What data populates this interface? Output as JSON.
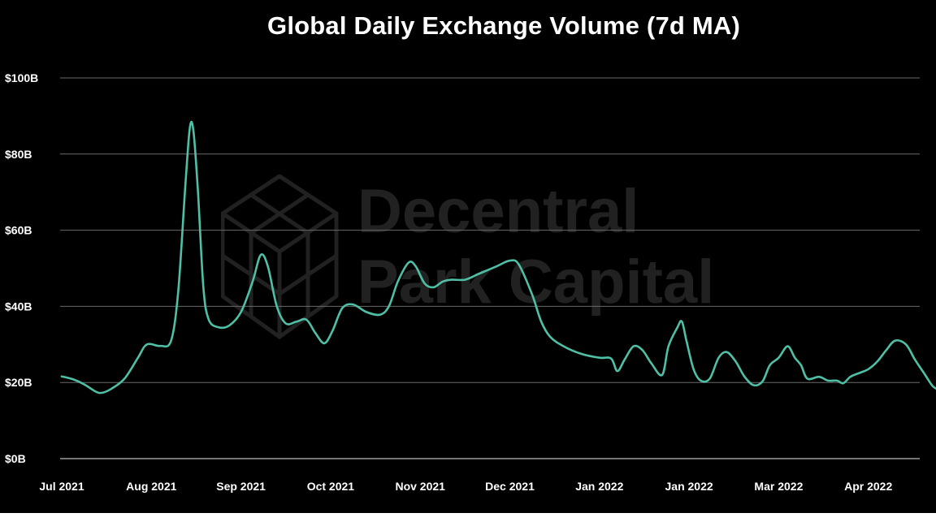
{
  "chart_data": {
    "type": "line",
    "title": "Global Daily Exchange Volume (7d MA)",
    "xlabel": "",
    "ylabel": "",
    "ylim": [
      0,
      100
    ],
    "y_ticks": [
      "$0B",
      "$20B",
      "$40B",
      "$60B",
      "$80B",
      "$100B"
    ],
    "x_ticks": [
      "Jul 2021",
      "Aug 2021",
      "Sep 2021",
      "Oct 2021",
      "Nov 2021",
      "Dec 2021",
      "Jan 2022",
      "Jan 2022",
      "Mar 2022",
      "Apr 2022"
    ],
    "grid": true,
    "line_color": "#4fbfa5",
    "watermark": {
      "line1": "Decentral",
      "line2": "Park Capital"
    },
    "series": [
      {
        "values": [
          [
            0,
            21.6
          ],
          [
            0.13,
            20.8
          ],
          [
            0.25,
            19.5
          ],
          [
            0.38,
            17.6
          ],
          [
            0.45,
            17.3
          ],
          [
            0.55,
            18.3
          ],
          [
            0.7,
            21.0
          ],
          [
            0.85,
            26.5
          ],
          [
            0.95,
            30.0
          ],
          [
            1.1,
            29.6
          ],
          [
            1.22,
            31.0
          ],
          [
            1.3,
            44.0
          ],
          [
            1.38,
            72.0
          ],
          [
            1.43,
            87.0
          ],
          [
            1.47,
            86.0
          ],
          [
            1.52,
            70.0
          ],
          [
            1.58,
            45.0
          ],
          [
            1.64,
            36.5
          ],
          [
            1.75,
            34.5
          ],
          [
            1.87,
            35.0
          ],
          [
            2.0,
            38.5
          ],
          [
            2.13,
            46.5
          ],
          [
            2.22,
            53.5
          ],
          [
            2.3,
            50.5
          ],
          [
            2.4,
            40.0
          ],
          [
            2.5,
            35.5
          ],
          [
            2.62,
            36.0
          ],
          [
            2.73,
            36.5
          ],
          [
            2.83,
            33.0
          ],
          [
            2.93,
            30.3
          ],
          [
            3.02,
            33.5
          ],
          [
            3.13,
            39.5
          ],
          [
            3.25,
            40.5
          ],
          [
            3.4,
            38.5
          ],
          [
            3.55,
            37.8
          ],
          [
            3.65,
            40.0
          ],
          [
            3.75,
            46.5
          ],
          [
            3.87,
            51.5
          ],
          [
            3.95,
            50.5
          ],
          [
            4.05,
            46.0
          ],
          [
            4.15,
            45.0
          ],
          [
            4.25,
            46.5
          ],
          [
            4.35,
            47.0
          ],
          [
            4.5,
            47.0
          ],
          [
            4.65,
            48.5
          ],
          [
            4.85,
            50.5
          ],
          [
            5.0,
            52.0
          ],
          [
            5.1,
            51.0
          ],
          [
            5.25,
            43.0
          ],
          [
            5.35,
            36.0
          ],
          [
            5.45,
            32.0
          ],
          [
            5.6,
            29.5
          ],
          [
            5.8,
            27.5
          ],
          [
            6.0,
            26.5
          ],
          [
            6.13,
            26.3
          ],
          [
            6.2,
            23.0
          ],
          [
            6.28,
            26.0
          ],
          [
            6.38,
            29.5
          ],
          [
            6.48,
            28.5
          ],
          [
            6.58,
            25.0
          ],
          [
            6.7,
            22.0
          ],
          [
            6.77,
            29.5
          ],
          [
            6.87,
            34.5
          ],
          [
            6.92,
            36.0
          ],
          [
            6.97,
            31.0
          ],
          [
            7.05,
            23.5
          ],
          [
            7.13,
            20.5
          ],
          [
            7.23,
            21.0
          ],
          [
            7.33,
            26.5
          ],
          [
            7.42,
            28.0
          ],
          [
            7.52,
            25.5
          ],
          [
            7.62,
            21.5
          ],
          [
            7.72,
            19.3
          ],
          [
            7.82,
            20.3
          ],
          [
            7.9,
            24.5
          ],
          [
            8.0,
            26.5
          ],
          [
            8.1,
            29.5
          ],
          [
            8.18,
            26.5
          ],
          [
            8.25,
            24.5
          ],
          [
            8.32,
            21.0
          ],
          [
            8.45,
            21.5
          ],
          [
            8.55,
            20.5
          ],
          [
            8.65,
            20.5
          ],
          [
            8.72,
            19.8
          ],
          [
            8.8,
            21.5
          ],
          [
            8.9,
            22.5
          ],
          [
            9.0,
            23.5
          ],
          [
            9.1,
            25.5
          ],
          [
            9.2,
            28.5
          ],
          [
            9.3,
            31.0
          ],
          [
            9.42,
            30.0
          ],
          [
            9.52,
            26.0
          ],
          [
            9.62,
            22.5
          ],
          [
            9.72,
            19.0
          ],
          [
            9.8,
            18.0
          ]
        ]
      }
    ]
  }
}
